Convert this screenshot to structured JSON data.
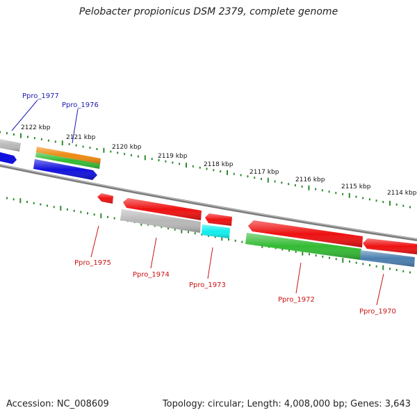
{
  "title": "Pelobacter propionicus DSM 2379, complete genome",
  "accession": "Accession: NC_008609",
  "summary": "Topology: circular; Length: 4,008,000 bp; Genes: 3,643",
  "colors": {
    "backbone": "#8a8a8a",
    "tick": "#2e8b2e",
    "label_forward": "#1a1ab0",
    "label_reverse": "#cc1111",
    "red": "#ee1111",
    "gray": "#b8b8b8",
    "orange": "#ee8a11",
    "green": "#33bb33",
    "blue": "#1111dd",
    "cyan": "#11eeee",
    "steelblue": "#4a7fb0"
  },
  "scale_labels": [
    "2122 kbp",
    "2121 kbp",
    "2120 kbp",
    "2119 kbp",
    "2118 kbp",
    "2117 kbp",
    "2116 kbp",
    "2115 kbp",
    "2114 kbp"
  ],
  "gene_labels": {
    "forward": [
      "Ppro_1977",
      "Ppro_1976"
    ],
    "reverse": [
      "Ppro_1975",
      "Ppro_1974",
      "Ppro_1973",
      "Ppro_1972",
      "Ppro_1970"
    ]
  }
}
